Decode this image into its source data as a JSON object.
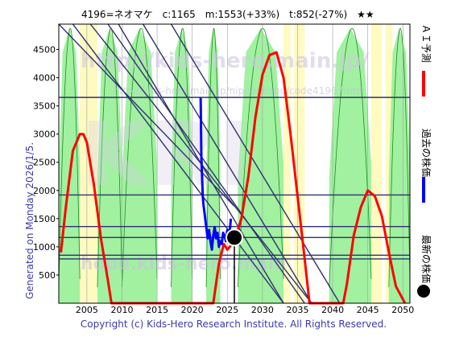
{
  "header": {
    "text": "4196=ネオマケ　c:1165　m:1553(+33%)　t:852(-27%)　★★"
  },
  "watermarks": {
    "url_top": "http://kids-hero.main.jp/",
    "url_mid": "http://kids-hero.main.jp/nipponkabu/code4196.html",
    "logo": "KH",
    "center": "KRI",
    "bottom": "hope.kids-hero.main"
  },
  "left_label": "Generated on Monday 2026/1/5.",
  "right_legend": [
    {
      "label": "ＡＩ予測",
      "color": "#ff0000",
      "marker": "line"
    },
    {
      "label": "過去の株価",
      "color": "#0000ff",
      "marker": "line"
    },
    {
      "label": "最新の株価",
      "color": "#000000",
      "marker": "dot"
    }
  ],
  "footer": "Copyright (c) Kids-Hero Research Institute. All Rights Reserved.",
  "colors": {
    "plot_bg": "#ffffff",
    "green_band": "#90ee90",
    "green_line": "#1e8c1e",
    "yellow_band": "#fffac0",
    "ai_line": "#ff0000",
    "past_price": "#0000ff",
    "trend_line": "#303070",
    "hline": "#303070"
  },
  "chart_data": {
    "type": "line",
    "title": "4196=ネオマケ　c:1165　m:1553(+33%)　t:852(-27%)　★★",
    "x_ticks": [
      2005,
      2010,
      2015,
      2020,
      2025,
      2030,
      2035,
      2040,
      2045,
      2050
    ],
    "y_ticks": [
      500,
      1000,
      1500,
      2000,
      2500,
      3000,
      3500,
      4000,
      4500
    ],
    "xlim": [
      2001,
      2051
    ],
    "ylim": [
      0,
      4950
    ],
    "grid": "x",
    "legend_position": "right-vertical",
    "horizontal_lines": [
      3650,
      1920,
      1360,
      1165,
      852,
      785
    ],
    "current": {
      "x": 2026.0,
      "y": 1165
    },
    "vertical_marker_x": 2026.0,
    "trend_lines": [
      {
        "x": [
          2001,
          2026
        ],
        "y": [
          4950,
          1720
        ]
      },
      {
        "x": [
          2003,
          2033
        ],
        "y": [
          4950,
          0
        ]
      },
      {
        "x": [
          2005.5,
          2037
        ],
        "y": [
          4950,
          0
        ]
      },
      {
        "x": [
          2008,
          2036
        ],
        "y": [
          4950,
          0
        ]
      },
      {
        "x": [
          2009.5,
          2033
        ],
        "y": [
          4950,
          0
        ]
      },
      {
        "x": [
          2013,
          2037
        ],
        "y": [
          4950,
          0
        ]
      },
      {
        "x": [
          2017,
          2041
        ],
        "y": [
          4950,
          0
        ]
      }
    ],
    "series": [
      {
        "key": "ai_forecast",
        "x": [
          2001.3,
          2002,
          2003,
          2004,
          2004.5,
          2005,
          2006,
          2007,
          2008,
          2008.5,
          2009,
          2010,
          2011,
          2012,
          2013,
          2014,
          2015,
          2016,
          2017,
          2018,
          2019,
          2020,
          2021,
          2022,
          2023,
          2023.8,
          2024.5,
          2025,
          2026,
          2027,
          2028,
          2029,
          2030,
          2031,
          2032,
          2033,
          2034,
          2035,
          2036,
          2036.7,
          2037.3,
          2038,
          2039,
          2040,
          2041,
          2041.5,
          2042,
          2043,
          2044,
          2045,
          2046,
          2047,
          2048,
          2049,
          2050.3
        ],
        "y": [
          900,
          1700,
          2700,
          3000,
          3000,
          2850,
          2100,
          1150,
          400,
          0,
          0,
          0,
          0,
          0,
          0,
          0,
          0,
          0,
          0,
          0,
          0,
          0,
          0,
          0,
          0,
          700,
          1050,
          950,
          1100,
          1500,
          2250,
          3300,
          4050,
          4400,
          4450,
          4000,
          3000,
          1900,
          800,
          0,
          0,
          0,
          0,
          0,
          0,
          0,
          320,
          1200,
          1700,
          2000,
          1900,
          1550,
          900,
          300,
          0
        ]
      },
      {
        "key": "past_price",
        "x": [
          2021.2,
          2021.3,
          2021.5,
          2021.6,
          2021.8,
          2022.0,
          2022.2,
          2022.4,
          2022.6,
          2022.8,
          2023.0,
          2023.2,
          2023.4,
          2023.6,
          2023.8,
          2024.0,
          2024.2,
          2024.4,
          2024.6,
          2024.8,
          2025.0,
          2025.2,
          2025.4,
          2025.5
        ],
        "y": [
          3650,
          2600,
          1900,
          1750,
          1550,
          1350,
          1150,
          1300,
          1100,
          950,
          1200,
          1350,
          1150,
          1250,
          1000,
          1100,
          1050,
          1250,
          1200,
          1100,
          1300,
          1200,
          1350,
          1500
        ]
      }
    ],
    "bands": {
      "green": [
        [
          2001,
          2004
        ],
        [
          2006.5,
          2010
        ],
        [
          2010,
          2015
        ],
        [
          2017,
          2020
        ],
        [
          2022,
          2024
        ],
        [
          2026.5,
          2033
        ],
        [
          2039.5,
          2045.5
        ],
        [
          2048,
          2051
        ]
      ],
      "yellow": [
        [
          2004,
          2006.5
        ],
        [
          2033,
          2034
        ],
        [
          2034.5,
          2036
        ],
        [
          2045.5,
          2047
        ],
        [
          2047.5,
          2048.5
        ]
      ]
    }
  }
}
